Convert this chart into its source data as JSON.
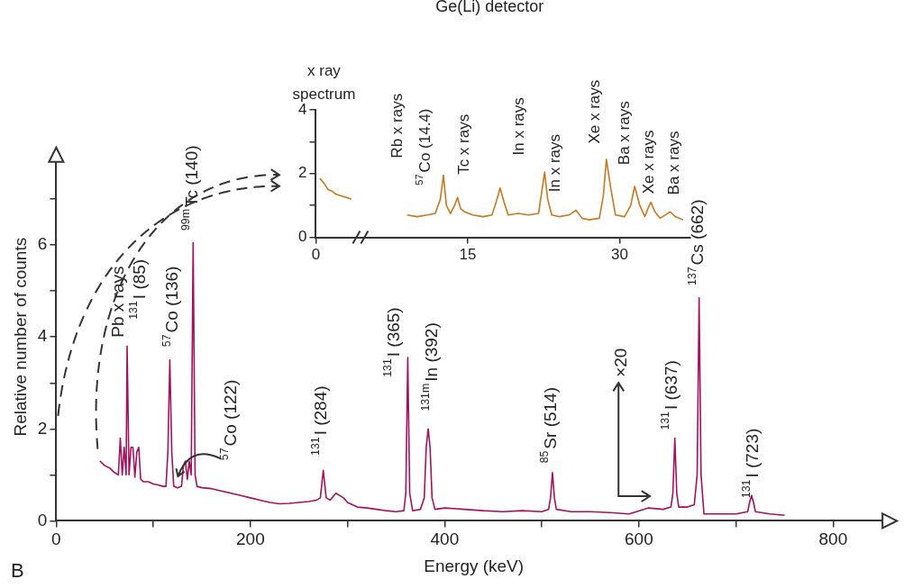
{
  "chart_data": [
    {
      "type": "line",
      "xlabel": "Energy (keV)",
      "ylabel": "Relative number of counts",
      "xlim": [
        0,
        860
      ],
      "ylim": [
        0,
        8
      ],
      "xticks": [
        0,
        {
          "value": 100,
          "label": null
        },
        200,
        {
          "value": 300,
          "label": null
        },
        400,
        {
          "value": 500,
          "label": null
        },
        600,
        {
          "value": 700,
          "label": null
        },
        800
      ],
      "yticks": [
        0,
        {
          "value": 1,
          "label": null
        },
        2,
        {
          "value": 3,
          "label": null
        },
        4,
        {
          "value": 5,
          "label": null
        },
        6,
        {
          "value": 7,
          "label": null
        }
      ],
      "series": [
        {
          "color": "#a3125e",
          "x": [
            45,
            50,
            55,
            60,
            64,
            66,
            68,
            70,
            72,
            73,
            75,
            77,
            79,
            81,
            83,
            85,
            87,
            90,
            95,
            100,
            105,
            110,
            113,
            115,
            117,
            119,
            121,
            125,
            129,
            131,
            133,
            135,
            137,
            139,
            141,
            143,
            145,
            150,
            160,
            170,
            180,
            190,
            200,
            210,
            220,
            230,
            240,
            250,
            260,
            268,
            272,
            275,
            278,
            282,
            288,
            292,
            296,
            300,
            310,
            320,
            330,
            340,
            350,
            358,
            360,
            362,
            364,
            367,
            375,
            379,
            381,
            383,
            385,
            387,
            390,
            400,
            420,
            440,
            460,
            480,
            500,
            507,
            509,
            511,
            513,
            515,
            530,
            550,
            570,
            590,
            610,
            625,
            633,
            635,
            637,
            639,
            641,
            650,
            657,
            660,
            662,
            664,
            667,
            680,
            700,
            712,
            714,
            716,
            718,
            720,
            735,
            750
          ],
          "values": [
            1.3,
            1.2,
            1.15,
            1.05,
            1.0,
            1.8,
            1.0,
            1.6,
            1.0,
            3.8,
            1.0,
            1.6,
            1.6,
            0.95,
            1.5,
            1.6,
            0.9,
            0.85,
            0.85,
            0.8,
            0.78,
            0.75,
            0.75,
            1.5,
            3.5,
            1.5,
            0.75,
            0.72,
            0.75,
            1.2,
            1.3,
            0.9,
            1.3,
            1.0,
            6.05,
            1.0,
            0.75,
            0.72,
            0.7,
            0.65,
            0.6,
            0.55,
            0.5,
            0.45,
            0.4,
            0.37,
            0.38,
            0.4,
            0.42,
            0.45,
            0.5,
            1.1,
            0.5,
            0.45,
            0.6,
            0.55,
            0.5,
            0.4,
            0.3,
            0.28,
            0.25,
            0.22,
            0.2,
            0.22,
            0.6,
            3.55,
            0.6,
            0.22,
            0.25,
            0.5,
            1.6,
            2.0,
            1.6,
            0.5,
            0.25,
            0.28,
            0.25,
            0.22,
            0.2,
            0.22,
            0.2,
            0.25,
            0.5,
            1.05,
            0.5,
            0.25,
            0.2,
            0.2,
            0.18,
            0.15,
            0.28,
            0.25,
            0.3,
            0.6,
            1.8,
            0.6,
            0.3,
            0.3,
            0.35,
            1.0,
            4.85,
            1.0,
            0.15,
            0.15,
            0.15,
            0.2,
            0.4,
            0.55,
            0.4,
            0.2,
            0.15,
            0.12
          ]
        }
      ],
      "annotations": [
        "Pb x rays",
        "$^{131}$I (85)",
        "$^{57}$Co (136)",
        "$^{99m}$Tc (140)",
        "$^{57}$Co (122)",
        "$^{131}$I (284)",
        "$^{131}$I (365)",
        "$^{131m}$In (392)",
        "$^{85}$Sr (514)",
        "×20",
        "$^{131}$I (637)",
        "$^{137}$Cs (662)",
        "$^{131}$I (723)",
        "B"
      ]
    },
    {
      "type": "line",
      "title": "Ge(Li) detector",
      "ylabel": "x ray spectrum",
      "xlim": [
        0,
        37
      ],
      "ylim": [
        0,
        4
      ],
      "xticks": [
        0,
        15,
        30
      ],
      "yticks": [
        0,
        {
          "value": 1,
          "label": null
        },
        2,
        {
          "value": 3,
          "label": null
        },
        4
      ],
      "series": [
        {
          "color": "#c8781e",
          "x": [
            0.4,
            0.8,
            1.2,
            1.6,
            2.0,
            2.5,
            3.0,
            3.5,
            3.8,
            9,
            10,
            11,
            11.8,
            12.3,
            12.6,
            12.9,
            13.3,
            13.7,
            14.0,
            14.3,
            14.7,
            15.5,
            16.5,
            17.4,
            17.9,
            18.2,
            18.6,
            19.0,
            20,
            21,
            22.0,
            22.3,
            22.6,
            22.9,
            23.3,
            24,
            25,
            25.7,
            26.3,
            27,
            28,
            28.4,
            28.7,
            29.1,
            29.6,
            30.5,
            31.1,
            31.5,
            32.0,
            32.5,
            32.8,
            33.1,
            33.5,
            34,
            34.5,
            35.0,
            35.5,
            36.3
          ],
          "values": [
            1.85,
            1.7,
            1.5,
            1.45,
            1.35,
            1.3,
            1.25,
            1.2,
            null,
            0.7,
            0.65,
            0.7,
            0.75,
            1.2,
            1.95,
            1.0,
            0.75,
            1.0,
            1.25,
            0.9,
            0.8,
            0.7,
            0.65,
            0.7,
            1.2,
            1.55,
            1.1,
            0.7,
            0.75,
            0.7,
            0.75,
            1.4,
            2.05,
            1.2,
            0.7,
            0.65,
            0.7,
            0.85,
            0.6,
            0.55,
            0.6,
            1.3,
            2.45,
            1.6,
            0.7,
            0.65,
            1.0,
            1.6,
            1.0,
            0.65,
            0.9,
            1.1,
            0.8,
            0.6,
            0.7,
            0.8,
            0.65,
            0.55
          ]
        }
      ],
      "annotations": [
        "Rb x rays",
        "$^{57}$Co (14.4)",
        "Tc x rays",
        "In x rays",
        "In x rays",
        "Xe x rays",
        "Ba x rays",
        "Xe x rays",
        "Ba x rays"
      ]
    }
  ]
}
